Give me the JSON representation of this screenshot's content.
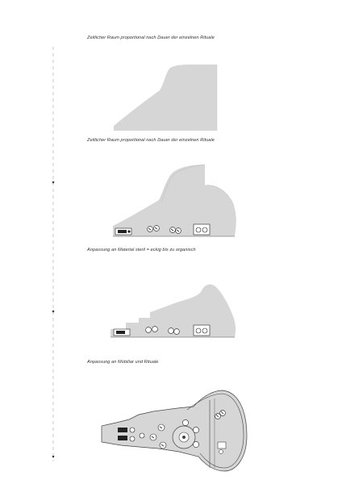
{
  "captions": {
    "step1": "Zeitlicher Raum proportional nach Dauer der einzelnen Rituale",
    "step2": "Zeitlicher Raum proportional nach Dauer der einzelnen Rituale",
    "step3": "Anpassung an Material steril = eckig bis zu organisch",
    "step4": "Anpassung an Mobiliar und Rituale"
  },
  "colors": {
    "fill": "#d6d6d6",
    "outline": "#444444",
    "timeline": "#b8b8b8"
  }
}
